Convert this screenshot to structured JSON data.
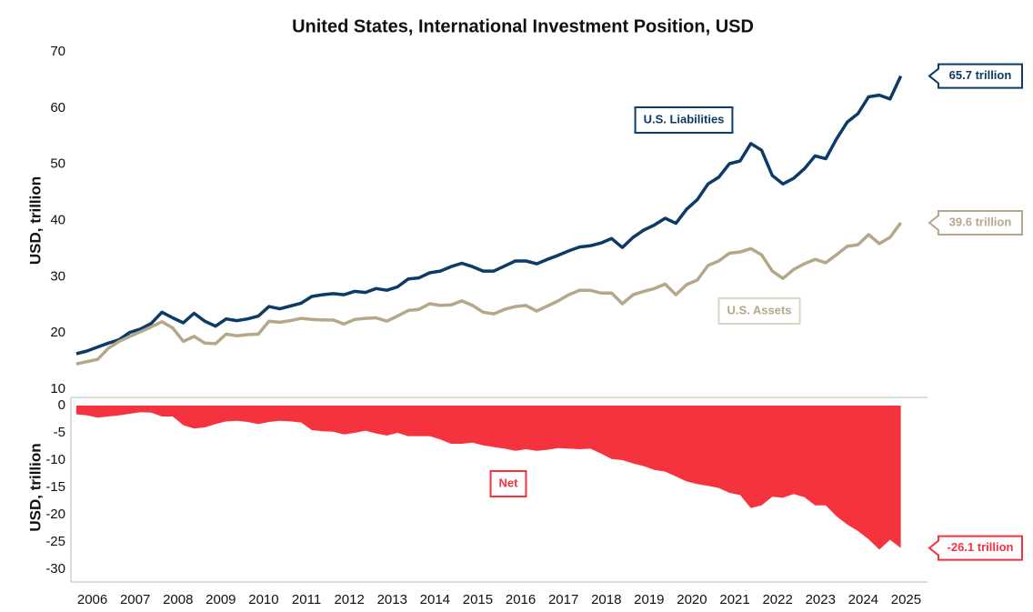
{
  "chart_data": {
    "type": "line",
    "title": "United States, International Investment Position, USD",
    "x": [
      2006.125,
      2006.375,
      2006.625,
      2006.875,
      2007.125,
      2007.375,
      2007.625,
      2007.875,
      2008.125,
      2008.375,
      2008.625,
      2008.875,
      2009.125,
      2009.375,
      2009.625,
      2009.875,
      2010.125,
      2010.375,
      2010.625,
      2010.875,
      2011.125,
      2011.375,
      2011.625,
      2011.875,
      2012.125,
      2012.375,
      2012.625,
      2012.875,
      2013.125,
      2013.375,
      2013.625,
      2013.875,
      2014.125,
      2014.375,
      2014.625,
      2014.875,
      2015.125,
      2015.375,
      2015.625,
      2015.875,
      2016.125,
      2016.375,
      2016.625,
      2016.875,
      2017.125,
      2017.375,
      2017.625,
      2017.875,
      2018.125,
      2018.375,
      2018.625,
      2018.875,
      2019.125,
      2019.375,
      2019.625,
      2019.875,
      2020.125,
      2020.375,
      2020.625,
      2020.875,
      2021.125,
      2021.375,
      2021.625,
      2021.875,
      2022.125,
      2022.375,
      2022.625,
      2022.875,
      2023.125,
      2023.375,
      2023.625,
      2023.875,
      2024.125,
      2024.375,
      2024.625,
      2024.875,
      2025.125,
      2025.375
    ],
    "xlim": [
      2006,
      2026
    ],
    "xticks": [
      {
        "value": 2006.5,
        "label": "2006"
      },
      {
        "value": 2007.5,
        "label": "2007"
      },
      {
        "value": 2008.5,
        "label": "2008"
      },
      {
        "value": 2009.5,
        "label": "2009"
      },
      {
        "value": 2010.5,
        "label": "2010"
      },
      {
        "value": 2011.5,
        "label": "2011"
      },
      {
        "value": 2012.5,
        "label": "2012"
      },
      {
        "value": 2013.5,
        "label": "2013"
      },
      {
        "value": 2014.5,
        "label": "2014"
      },
      {
        "value": 2015.5,
        "label": "2015"
      },
      {
        "value": 2016.5,
        "label": "2016"
      },
      {
        "value": 2017.5,
        "label": "2017"
      },
      {
        "value": 2018.5,
        "label": "2018"
      },
      {
        "value": 2019.5,
        "label": "2019"
      },
      {
        "value": 2020.5,
        "label": "2020"
      },
      {
        "value": 2021.5,
        "label": "2021"
      },
      {
        "value": 2022.5,
        "label": "2022"
      },
      {
        "value": 2023.5,
        "label": "2023"
      },
      {
        "value": 2024.5,
        "label": "2024"
      },
      {
        "value": 2025.5,
        "label": "2025"
      }
    ],
    "panels": [
      {
        "ylabel": "USD, trillion",
        "ylim": [
          10,
          70
        ],
        "yticks": [
          10,
          20,
          30,
          40,
          50,
          60,
          70
        ],
        "series": [
          {
            "name": "U.S. Liabilities",
            "color": "#0b3b66",
            "end_label": "65.7 trillion",
            "values": [
              16.3,
              16.8,
              17.5,
              18.2,
              18.8,
              20.1,
              20.7,
              21.7,
              23.7,
              22.7,
              21.8,
              23.5,
              22.1,
              21.2,
              22.5,
              22.2,
              22.5,
              23.0,
              24.7,
              24.3,
              24.8,
              25.3,
              26.5,
              26.8,
              27.0,
              26.8,
              27.4,
              27.2,
              27.9,
              27.6,
              28.2,
              29.6,
              29.8,
              30.7,
              31.0,
              31.8,
              32.4,
              31.8,
              31.0,
              31.0,
              31.9,
              32.8,
              32.8,
              32.3,
              33.1,
              33.8,
              34.6,
              35.3,
              35.5,
              36.0,
              36.8,
              35.2,
              37.0,
              38.3,
              39.2,
              40.4,
              39.5,
              42.0,
              43.7,
              46.5,
              47.7,
              50.1,
              50.6,
              53.7,
              52.5,
              48.0,
              46.5,
              47.5,
              49.2,
              51.5,
              51.0,
              54.5,
              57.5,
              59.0,
              62.0,
              62.3,
              61.6,
              65.7
            ]
          },
          {
            "name": "U.S. Assets",
            "color": "#b5a88a",
            "end_label": "39.6 trillion",
            "values": [
              14.5,
              14.9,
              15.3,
              17.3,
              18.5,
              19.4,
              20.2,
              21.1,
              22.0,
              20.9,
              18.5,
              19.4,
              18.2,
              18.1,
              19.8,
              19.5,
              19.7,
              19.8,
              22.1,
              21.9,
              22.2,
              22.6,
              22.4,
              22.3,
              22.3,
              21.6,
              22.4,
              22.6,
              22.7,
              22.1,
              23.0,
              24.0,
              24.2,
              25.2,
              24.9,
              25.0,
              25.7,
              24.9,
              23.7,
              23.4,
              24.2,
              24.7,
              24.9,
              23.9,
              24.8,
              25.7,
              26.8,
              27.6,
              27.6,
              27.1,
              27.1,
              25.2,
              26.8,
              27.4,
              27.9,
              28.7,
              26.8,
              28.6,
              29.4,
              32.0,
              32.8,
              34.2,
              34.4,
              35.0,
              33.9,
              31.0,
              29.7,
              31.3,
              32.3,
              33.1,
              32.5,
              33.9,
              35.4,
              35.7,
              37.5,
              35.9,
              37.0,
              39.6
            ]
          }
        ]
      },
      {
        "ylabel": "USD, trillion",
        "ylim": [
          -30,
          0
        ],
        "yticks": [
          -30,
          -25,
          -20,
          -15,
          -10,
          -5,
          0
        ],
        "series": [
          {
            "name": "Net",
            "type": "area",
            "color": "#f5333f",
            "end_label": "-26.1 trillion",
            "values": [
              -1.6,
              -1.8,
              -2.2,
              -2.0,
              -1.8,
              -1.5,
              -1.2,
              -1.3,
              -2.0,
              -2.0,
              -3.6,
              -4.2,
              -4.0,
              -3.4,
              -2.9,
              -2.8,
              -3.0,
              -3.4,
              -3.0,
              -2.8,
              -2.9,
              -3.1,
              -4.5,
              -4.7,
              -4.8,
              -5.3,
              -5.0,
              -4.6,
              -5.1,
              -5.5,
              -5.0,
              -5.6,
              -5.6,
              -5.6,
              -6.2,
              -7.0,
              -7.0,
              -6.8,
              -7.3,
              -7.6,
              -7.9,
              -8.3,
              -8.0,
              -8.3,
              -8.1,
              -7.8,
              -7.9,
              -8.0,
              -7.9,
              -8.8,
              -9.8,
              -10.0,
              -10.6,
              -11.1,
              -11.8,
              -12.1,
              -13.0,
              -13.9,
              -14.4,
              -14.7,
              -15.1,
              -16.0,
              -16.4,
              -18.8,
              -18.3,
              -16.7,
              -16.9,
              -16.2,
              -16.8,
              -18.3,
              -18.3,
              -20.3,
              -21.8,
              -23.0,
              -24.5,
              -26.4,
              -24.6,
              -26.1
            ]
          }
        ]
      }
    ]
  }
}
